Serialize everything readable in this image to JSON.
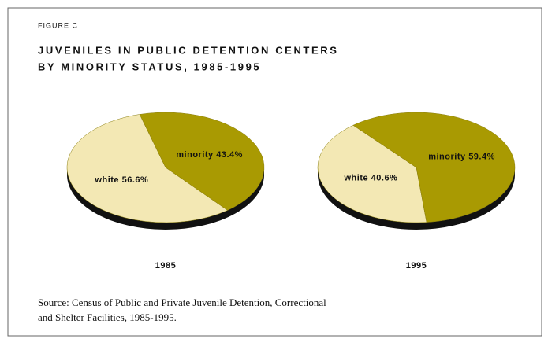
{
  "figure_label": "FIGURE C",
  "title": [
    "JUVENILES IN PUBLIC DETENTION CENTERS",
    "BY MINORITY STATUS, 1985-1995"
  ],
  "chart_data": [
    {
      "type": "pie",
      "title": "1985",
      "categories": [
        "white",
        "minority"
      ],
      "values": [
        56.6,
        43.4
      ],
      "value_labels": [
        "56.6%",
        "43.4%"
      ],
      "colors": [
        "#f3e8b4",
        "#a99a02"
      ]
    },
    {
      "type": "pie",
      "title": "1995",
      "categories": [
        "white",
        "minority"
      ],
      "values": [
        40.6,
        59.4
      ],
      "value_labels": [
        "40.6%",
        "59.4%"
      ],
      "colors": [
        "#f3e8b4",
        "#a99a02"
      ]
    }
  ],
  "source": [
    "Source: Census of Public and Private Juvenile Detention, Correctional",
    "and Shelter Facilities, 1985-1995."
  ]
}
